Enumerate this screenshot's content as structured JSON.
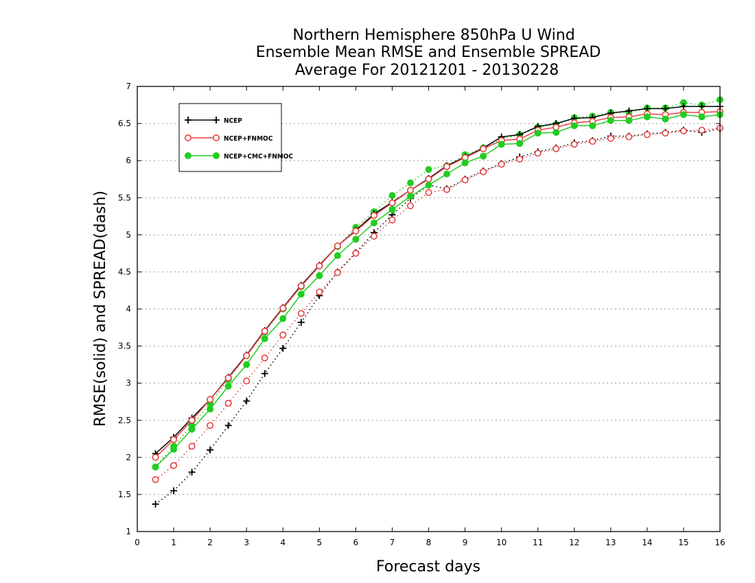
{
  "chart_data": {
    "type": "line",
    "title": [
      "Northern Hemisphere 850hPa U Wind",
      "Ensemble Mean RMSE and Ensemble SPREAD",
      "Average For 20121201 - 20130228"
    ],
    "xlabel": "Forecast days",
    "ylabel": "RMSE(solid) and SPREAD(dash)",
    "xlim": [
      0,
      16
    ],
    "ylim": [
      1,
      7
    ],
    "xticks": [
      0,
      1,
      2,
      3,
      4,
      5,
      6,
      7,
      8,
      9,
      10,
      11,
      12,
      13,
      14,
      15,
      16
    ],
    "yticks": [
      1,
      1.5,
      2,
      2.5,
      3,
      3.5,
      4,
      4.5,
      5,
      5.5,
      6,
      6.5,
      7
    ],
    "grid": "horizontal dotted",
    "legend_position": "top-left",
    "x": [
      0.5,
      1,
      1.5,
      2,
      2.5,
      3,
      3.5,
      4,
      4.5,
      5,
      5.5,
      6,
      6.5,
      7,
      7.5,
      8,
      8.5,
      9,
      9.5,
      10,
      10.5,
      11,
      11.5,
      12,
      12.5,
      13,
      13.5,
      14,
      14.5,
      15,
      15.5,
      16
    ],
    "series": [
      {
        "name": "NCEP",
        "color": "#000000",
        "marker": "plus",
        "rmse": [
          2.05,
          2.27,
          2.53,
          2.78,
          3.08,
          3.38,
          3.71,
          4.02,
          4.32,
          4.59,
          4.85,
          5.06,
          5.28,
          5.44,
          5.6,
          5.76,
          5.93,
          6.05,
          6.17,
          6.32,
          6.35,
          6.46,
          6.5,
          6.57,
          6.58,
          6.64,
          6.67,
          6.7,
          6.7,
          6.73,
          6.73,
          6.73
        ],
        "spread": [
          1.37,
          1.55,
          1.8,
          2.1,
          2.43,
          2.76,
          3.13,
          3.47,
          3.82,
          4.18,
          4.5,
          4.76,
          5.03,
          5.27,
          5.49,
          5.67,
          5.62,
          5.75,
          5.86,
          5.96,
          6.05,
          6.12,
          6.17,
          6.24,
          6.27,
          6.33,
          6.33,
          6.36,
          6.38,
          6.41,
          6.38,
          6.43
        ]
      },
      {
        "name": "NCEP+FNMOC",
        "color": "#e84040",
        "marker": "open-circle",
        "rmse": [
          2.0,
          2.24,
          2.5,
          2.78,
          3.07,
          3.37,
          3.7,
          4.01,
          4.31,
          4.58,
          4.85,
          5.05,
          5.26,
          5.43,
          5.6,
          5.75,
          5.92,
          6.04,
          6.16,
          6.27,
          6.29,
          6.41,
          6.45,
          6.51,
          6.53,
          6.58,
          6.59,
          6.63,
          6.62,
          6.65,
          6.65,
          6.66
        ],
        "spread": [
          1.7,
          1.89,
          2.15,
          2.43,
          2.73,
          3.03,
          3.34,
          3.65,
          3.94,
          4.23,
          4.49,
          4.75,
          4.98,
          5.2,
          5.39,
          5.57,
          5.61,
          5.74,
          5.85,
          5.95,
          6.02,
          6.1,
          6.16,
          6.22,
          6.26,
          6.3,
          6.32,
          6.35,
          6.37,
          6.4,
          6.41,
          6.44
        ]
      },
      {
        "name": "NCEP+CMC+FNMOC",
        "color": "#22cc22",
        "marker": "filled-circle",
        "rmse": [
          1.87,
          2.11,
          2.38,
          2.65,
          2.96,
          3.25,
          3.6,
          3.87,
          4.2,
          4.45,
          4.72,
          4.94,
          5.16,
          5.34,
          5.52,
          5.67,
          5.82,
          5.97,
          6.06,
          6.22,
          6.23,
          6.37,
          6.38,
          6.47,
          6.47,
          6.54,
          6.54,
          6.59,
          6.56,
          6.62,
          6.59,
          6.62
        ],
        "spread": [
          1.87,
          2.15,
          2.43,
          2.73,
          3.05,
          3.37,
          3.69,
          4.0,
          4.3,
          4.58,
          4.84,
          5.1,
          5.31,
          5.53,
          5.7,
          5.88,
          5.93,
          6.08,
          6.17,
          6.29,
          6.35,
          6.45,
          6.49,
          6.58,
          6.6,
          6.65,
          6.65,
          6.71,
          6.71,
          6.78,
          6.75,
          6.82
        ]
      }
    ]
  }
}
